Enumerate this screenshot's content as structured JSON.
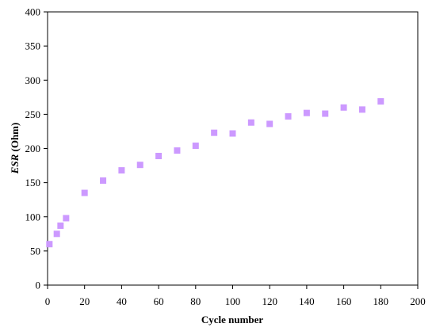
{
  "chart_data": {
    "type": "scatter",
    "title": "",
    "xlabel": "Cycle number",
    "ylabel_italic": "ESR",
    "ylabel_rest": " (Ohm)",
    "xlim": [
      0,
      200
    ],
    "ylim": [
      0,
      400
    ],
    "x_ticks": [
      0,
      20,
      40,
      60,
      80,
      100,
      120,
      140,
      160,
      180,
      200
    ],
    "y_ticks": [
      0,
      50,
      100,
      150,
      200,
      250,
      300,
      350,
      400
    ],
    "grid": false,
    "legend": "none",
    "marker": "square",
    "marker_color": "#cc99ff",
    "series": [
      {
        "x": [
          1,
          5,
          7,
          10,
          20,
          30,
          40,
          50,
          60,
          70,
          80,
          90,
          100,
          110,
          120,
          130,
          140,
          150,
          160,
          170,
          180
        ],
        "y": [
          60,
          75,
          87,
          98,
          135,
          153,
          168,
          176,
          189,
          197,
          204,
          223,
          222,
          238,
          236,
          247,
          252,
          251,
          260,
          257,
          269
        ]
      }
    ]
  }
}
